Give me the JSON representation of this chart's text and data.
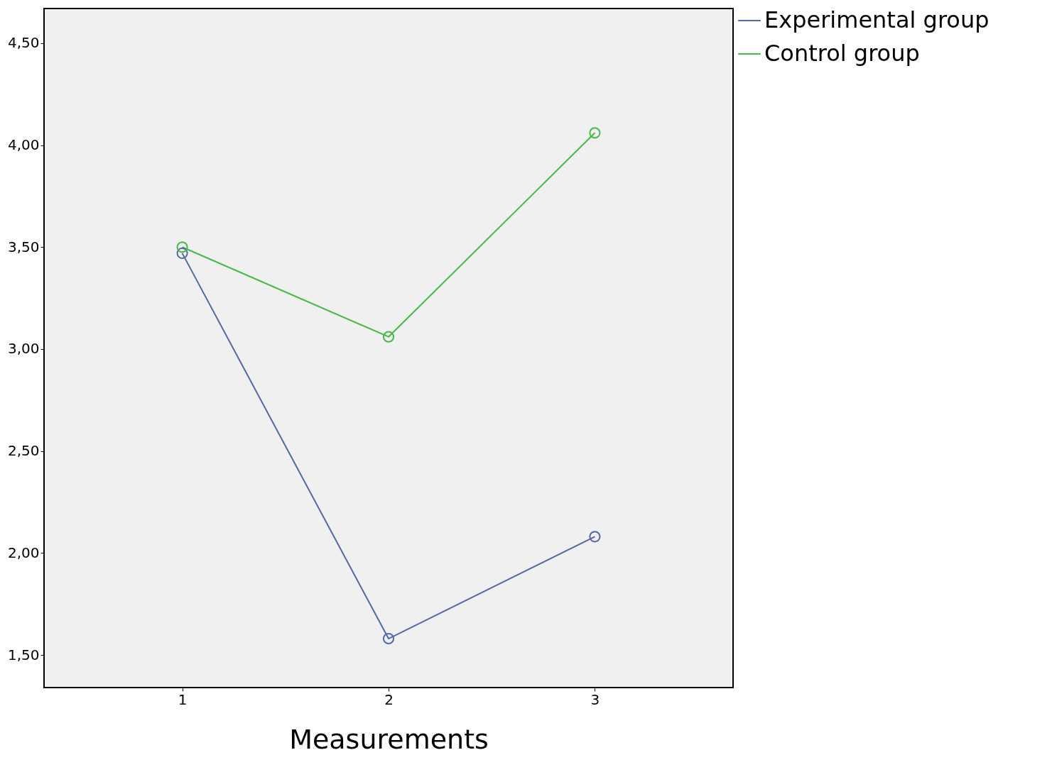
{
  "chart_data": {
    "type": "line",
    "xlabel": "Measurements",
    "x": [
      1,
      2,
      3
    ],
    "xlim": [
      0.33,
      3.67
    ],
    "xticks": [
      1,
      2,
      3
    ],
    "ylim": [
      1.34,
      4.67
    ],
    "yticks": [
      {
        "value": 1.5,
        "label": "1,50"
      },
      {
        "value": 2,
        "label": "2,00"
      },
      {
        "value": 2.5,
        "label": "2,50"
      },
      {
        "value": 3,
        "label": "3,00"
      },
      {
        "value": 3.5,
        "label": "3,50"
      },
      {
        "value": 4,
        "label": "4,00"
      },
      {
        "value": 4.5,
        "label": "4,50"
      }
    ],
    "series": [
      {
        "name": "Experimental group",
        "color": "#5566aa",
        "values": [
          3.47,
          1.58,
          2.08
        ]
      },
      {
        "name": "Control group",
        "color": "#44bb44",
        "values": [
          3.5,
          3.06,
          4.06
        ]
      }
    ],
    "grid": false,
    "legend": "top right",
    "marker": "circle",
    "line_style": "solid"
  }
}
